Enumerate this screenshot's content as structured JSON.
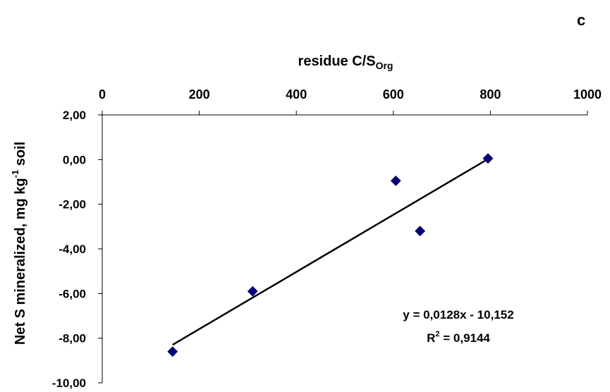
{
  "chart_data": {
    "type": "scatter",
    "panel_label": "c",
    "xlabel": "residue C/S",
    "xlabel_sub": "Org",
    "ylabel": "Net S mineralized, mg kg",
    "ylabel_sup": "-1",
    "ylabel_tail": " soil",
    "x_axis_position": "top",
    "xlim": [
      0,
      1000
    ],
    "ylim": [
      -10,
      2
    ],
    "x_ticks": [
      0,
      200,
      400,
      600,
      800,
      1000
    ],
    "x_tick_labels": [
      "0",
      "200",
      "400",
      "600",
      "800",
      "1000"
    ],
    "y_ticks": [
      2,
      0,
      -2,
      -4,
      -6,
      -8,
      -10
    ],
    "y_tick_labels": [
      "2,00",
      "0,00",
      "-2,00",
      "-4,00",
      "-6,00",
      "-8,00",
      "-10,00"
    ],
    "grid": false,
    "marker_color": "#000080",
    "points": [
      {
        "x": 145,
        "y": -8.6
      },
      {
        "x": 310,
        "y": -5.9
      },
      {
        "x": 605,
        "y": -0.95
      },
      {
        "x": 655,
        "y": -3.2
      },
      {
        "x": 795,
        "y": 0.05
      }
    ],
    "trendline": {
      "slope": 0.0128,
      "intercept": -10.152,
      "x_range": [
        145,
        795
      ],
      "equation_text": "y = 0,0128x - 10,152",
      "r2_label": "R",
      "r2_sup": "2",
      "r2_value_text": " = 0,9144"
    }
  }
}
